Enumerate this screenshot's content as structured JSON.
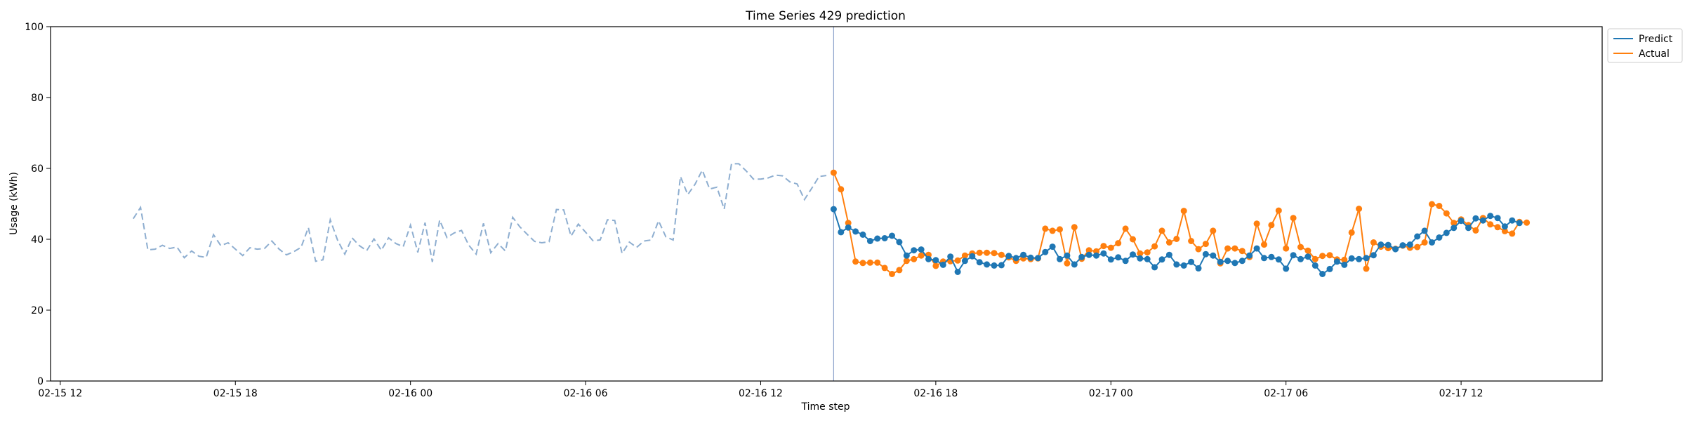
{
  "chart_data": {
    "type": "line",
    "title": "Time Series 429 prediction",
    "xlabel": "Time step",
    "ylabel": "Usage (kWh)",
    "ylim": [
      0,
      100
    ],
    "yticks": [
      0,
      20,
      40,
      60,
      80,
      100
    ],
    "xlim": [
      "02-15 11:40",
      "02-17 16:50"
    ],
    "xticks": [
      {
        "label": "02-15 12",
        "value": "02-15 12:00"
      },
      {
        "label": "02-15 18",
        "value": "02-15 18:00"
      },
      {
        "label": "02-16 00",
        "value": "02-16 00:00"
      },
      {
        "label": "02-16 06",
        "value": "02-16 06:00"
      },
      {
        "label": "02-16 12",
        "value": "02-16 12:00"
      },
      {
        "label": "02-16 18",
        "value": "02-16 18:00"
      },
      {
        "label": "02-17 00",
        "value": "02-17 00:00"
      },
      {
        "label": "02-17 06",
        "value": "02-17 06:00"
      },
      {
        "label": "02-17 12",
        "value": "02-17 12:00"
      }
    ],
    "grid": false,
    "legend_position": "outside-top-right",
    "split_time": "02-16 14:30",
    "history": {
      "start": "02-15 14:30",
      "step_minutes": 15,
      "color": "#8eaed0",
      "style": "dashed",
      "values": [
        45.8,
        49,
        37,
        37.2,
        38.3,
        37.4,
        37.8,
        34.8,
        36.7,
        35.2,
        34.9,
        41.3,
        38.2,
        39,
        37.2,
        35.4,
        37.6,
        37.2,
        37.4,
        39.5,
        37.2,
        35.6,
        36.5,
        37.7,
        43.3,
        33.8,
        34.2,
        45.5,
        39.8,
        35.8,
        40.4,
        38.2,
        36.8,
        40.1,
        36.9,
        40.4,
        38.8,
        37.9,
        44,
        36.3,
        44.7,
        33.6,
        45.4,
        40.5,
        41.8,
        42.5,
        38.3,
        35.8,
        44.5,
        36.2,
        38.8,
        36.7,
        46.2,
        43.5,
        41.4,
        39.4,
        39,
        39.3,
        48.4,
        48.3,
        40.9,
        44.3,
        42,
        39.6,
        39.8,
        45.5,
        45.3,
        36,
        39.2,
        37.7,
        39.5,
        39.8,
        45.2,
        40.7,
        39.8,
        57.7,
        52.6,
        55.5,
        59.5,
        54.2,
        54.7,
        48.5,
        61.3,
        61.3,
        59.3,
        57,
        57,
        57.3,
        58.1,
        57.9,
        56.2,
        55.6,
        51.2,
        54.4,
        57.7,
        58
      ]
    },
    "series": [
      {
        "name": "Predict",
        "color": "#1f77b4",
        "start": "02-16 14:30",
        "step_minutes": 15,
        "values": [
          48.5,
          42,
          43.3,
          42.2,
          41.3,
          39.5,
          40.2,
          40.3,
          41,
          39.2,
          35.4,
          36.9,
          37.1,
          34.4,
          34.1,
          32.8,
          35.1,
          30.8,
          33.9,
          35.2,
          33.5,
          32.9,
          32.6,
          32.7,
          35.3,
          34.7,
          35.6,
          34.8,
          34.7,
          36.4,
          37.9,
          34.4,
          35.4,
          32.9,
          35,
          35.6,
          35.4,
          36,
          34.3,
          34.9,
          33.9,
          35.7,
          34.6,
          34.4,
          32.1,
          34.3,
          35.6,
          32.9,
          32.6,
          33.6,
          31.8,
          35.8,
          35.4,
          33.6,
          33.9,
          33.3,
          33.9,
          35.4,
          37.4,
          34.7,
          35,
          34.3,
          31.7,
          35.5,
          34.4,
          35.1,
          32.6,
          30.2,
          31.6,
          33.7,
          32.8,
          34.6,
          34.4,
          34.7,
          35.5,
          38.5,
          38.4,
          37.2,
          38.3,
          38.5,
          40.8,
          42.4,
          39.1,
          40.5,
          41.8,
          43.2,
          45.2,
          43.2,
          45.9,
          45.3,
          46.6,
          46,
          43.6,
          45.3,
          44.6
        ]
      },
      {
        "name": "Actual",
        "color": "#ff7f0e",
        "start": "02-16 14:30",
        "step_minutes": 15,
        "values": [
          58.8,
          54.1,
          44.6,
          33.7,
          33.3,
          33.4,
          33.4,
          31.9,
          30.2,
          31.3,
          33.9,
          34.4,
          35.4,
          35.6,
          32.5,
          33.7,
          33.8,
          34,
          35.4,
          36,
          36.2,
          36.2,
          36.1,
          35.6,
          34.9,
          33.9,
          34.6,
          34.4,
          34.6,
          43,
          42.4,
          42.8,
          33.2,
          43.4,
          34.5,
          36.9,
          36.6,
          38.1,
          37.6,
          38.9,
          43,
          40,
          36,
          36.3,
          38,
          42.4,
          39.1,
          40.1,
          48,
          39.5,
          37.2,
          38.7,
          42.4,
          33.2,
          37.4,
          37.4,
          36.7,
          35,
          44.4,
          38.5,
          44,
          48.1,
          37.4,
          46,
          37.8,
          36.8,
          34.4,
          35.3,
          35.5,
          34.3,
          34.2,
          41.9,
          48.6,
          31.7,
          39.1,
          37.9,
          37.5,
          37.3,
          38.2,
          37.6,
          37.8,
          39.1,
          49.9,
          49.4,
          47.3,
          44.6,
          45.6,
          44,
          42.5,
          46,
          44.2,
          43.4,
          42.3,
          41.6,
          44.9,
          44.7
        ]
      }
    ]
  }
}
